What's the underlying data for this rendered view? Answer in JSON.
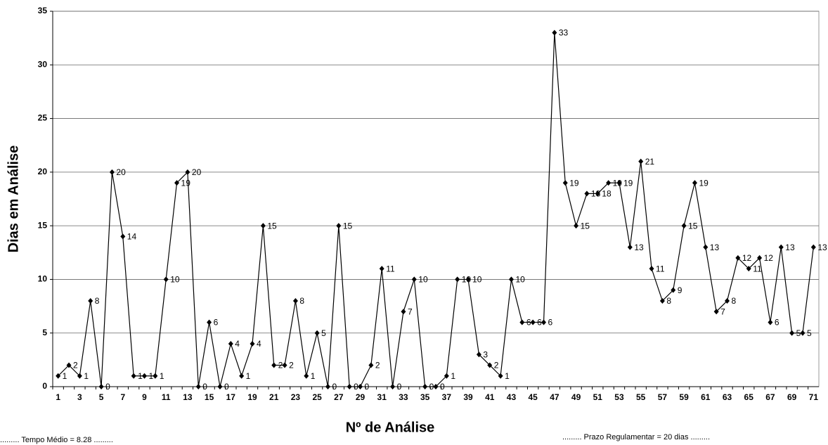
{
  "chart_data": {
    "type": "line",
    "x_label": "Nº de Análise",
    "y_label": "Dias em Análise",
    "annotations": [
      "......... Tempo Médio = 8.28 .........",
      "......... Prazo Regulamentar = 20 dias ........."
    ],
    "categories": [
      "1",
      null,
      "3",
      null,
      "5",
      null,
      "7",
      null,
      "9",
      null,
      "11",
      null,
      "13",
      null,
      "15",
      null,
      "17",
      null,
      "19",
      null,
      "21",
      null,
      "23",
      null,
      "25",
      null,
      "27",
      null,
      "29",
      null,
      "31",
      null,
      "33",
      null,
      "35",
      null,
      "37",
      null,
      "39",
      null,
      "41",
      null,
      "43",
      null,
      "45",
      null,
      "47",
      null,
      "49",
      null,
      "51",
      null,
      "53",
      null,
      "55",
      null,
      "57",
      null,
      "59",
      null,
      "61",
      null,
      "63",
      null,
      "65",
      null,
      "67",
      null,
      "69",
      null,
      "71"
    ],
    "values": [
      1,
      2,
      1,
      8,
      0,
      20,
      14,
      1,
      1,
      1,
      10,
      19,
      20,
      0,
      6,
      0,
      4,
      1,
      4,
      15,
      2,
      2,
      8,
      1,
      5,
      0,
      15,
      0,
      0,
      2,
      11,
      0,
      7,
      10,
      0,
      0,
      1,
      10,
      10,
      3,
      2,
      1,
      10,
      6,
      6,
      6,
      33,
      19,
      15,
      18,
      18,
      19,
      19,
      13,
      21,
      11,
      8,
      9,
      15,
      19,
      13,
      7,
      8,
      12,
      11,
      12,
      6,
      13,
      5,
      5,
      13
    ],
    "color": "#000000",
    "ylim": [
      0,
      35
    ],
    "yticks": [
      0,
      5,
      10,
      15,
      20,
      25,
      30,
      35
    ],
    "grid": true
  }
}
